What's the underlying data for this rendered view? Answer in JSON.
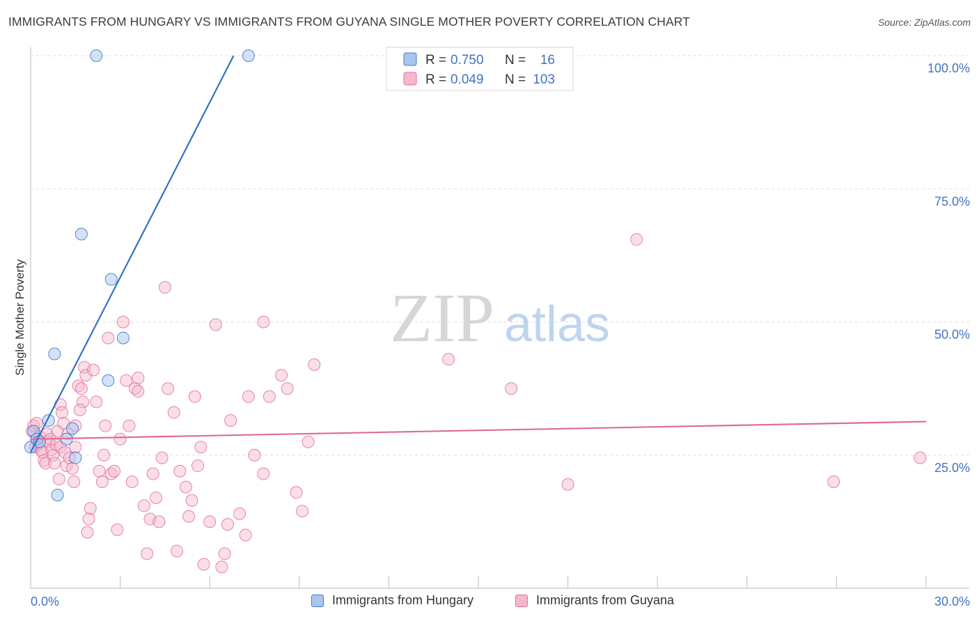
{
  "title": "IMMIGRANTS FROM HUNGARY VS IMMIGRANTS FROM GUYANA SINGLE MOTHER POVERTY CORRELATION CHART",
  "source": "Source: ZipAtlas.com",
  "watermark": {
    "zip": "ZIP",
    "atlas": "atlas"
  },
  "colors": {
    "blue": "#4477cc",
    "blue_fill": "#a9c6ee",
    "blue_line": "#3370c8",
    "pink": "#e0709a",
    "pink_fill": "#f4b8cc",
    "pink_line": "#e06a95",
    "axis_label": "#4472c4",
    "grid": "#dddddd"
  },
  "legend_box": {
    "rows": [
      {
        "r_label": "R =",
        "r_value": "0.750",
        "n_label": "N =",
        "n_value": "16"
      },
      {
        "r_label": "R =",
        "r_value": "0.049",
        "n_label": "N =",
        "n_value": "103"
      }
    ]
  },
  "legend_bottom": {
    "hungary": "Immigrants from Hungary",
    "guyana": "Immigrants from Guyana"
  },
  "chart_data": {
    "type": "scatter",
    "title": "IMMIGRANTS FROM HUNGARY VS IMMIGRANTS FROM GUYANA SINGLE MOTHER POVERTY CORRELATION CHART",
    "xlabel": "",
    "ylabel": "Single Mother Poverty",
    "xlim": [
      0,
      30
    ],
    "ylim": [
      0,
      100
    ],
    "x_tick_labels": [
      "0.0%",
      "30.0%"
    ],
    "y_tick_labels": [
      "25.0%",
      "50.0%",
      "75.0%",
      "100.0%"
    ],
    "y_ticks": [
      25,
      50,
      75,
      100
    ],
    "grid": true,
    "series": [
      {
        "name": "Immigrants from Hungary",
        "color": "#4477cc",
        "R": 0.75,
        "N": 16,
        "points": [
          [
            0.0,
            26.5
          ],
          [
            0.1,
            29.5
          ],
          [
            0.2,
            28.0
          ],
          [
            0.3,
            27.5
          ],
          [
            0.6,
            31.5
          ],
          [
            0.8,
            44.0
          ],
          [
            0.9,
            17.5
          ],
          [
            1.2,
            28.0
          ],
          [
            1.4,
            30.0
          ],
          [
            1.5,
            24.5
          ],
          [
            1.7,
            66.5
          ],
          [
            2.2,
            100.0
          ],
          [
            2.6,
            39.0
          ],
          [
            2.7,
            58.0
          ],
          [
            3.1,
            47.0
          ],
          [
            7.3,
            100.0
          ]
        ],
        "trend": {
          "x": [
            0.0,
            6.8
          ],
          "y": [
            25.5,
            100.0
          ]
        }
      },
      {
        "name": "Immigrants from Guyana",
        "color": "#e0709a",
        "R": 0.049,
        "N": 103,
        "points": [
          [
            0.05,
            29.5
          ],
          [
            0.1,
            30.5
          ],
          [
            0.15,
            26.5
          ],
          [
            0.2,
            28.0
          ],
          [
            0.25,
            27.0
          ],
          [
            0.3,
            28.5
          ],
          [
            0.35,
            26.0
          ],
          [
            0.4,
            25.5
          ],
          [
            0.45,
            24.0
          ],
          [
            0.5,
            23.5
          ],
          [
            0.55,
            29.0
          ],
          [
            0.6,
            27.5
          ],
          [
            0.65,
            28.0
          ],
          [
            0.7,
            26.0
          ],
          [
            0.75,
            25.0
          ],
          [
            0.8,
            23.5
          ],
          [
            0.85,
            27.0
          ],
          [
            0.9,
            29.5
          ],
          [
            1.0,
            26.5
          ],
          [
            1.0,
            34.5
          ],
          [
            1.05,
            33.0
          ],
          [
            1.1,
            31.0
          ],
          [
            1.15,
            25.5
          ],
          [
            1.2,
            23.0
          ],
          [
            1.3,
            24.5
          ],
          [
            1.4,
            22.5
          ],
          [
            1.45,
            20.0
          ],
          [
            1.5,
            26.5
          ],
          [
            1.5,
            30.5
          ],
          [
            1.6,
            38.0
          ],
          [
            1.7,
            37.5
          ],
          [
            1.75,
            35.0
          ],
          [
            1.8,
            41.5
          ],
          [
            1.85,
            40.0
          ],
          [
            1.9,
            10.5
          ],
          [
            1.95,
            13.0
          ],
          [
            2.1,
            41.0
          ],
          [
            2.2,
            35.0
          ],
          [
            2.3,
            22.0
          ],
          [
            2.4,
            20.0
          ],
          [
            2.5,
            30.5
          ],
          [
            2.6,
            47.0
          ],
          [
            2.7,
            21.5
          ],
          [
            2.8,
            22.0
          ],
          [
            2.9,
            11.0
          ],
          [
            3.0,
            28.0
          ],
          [
            3.1,
            50.0
          ],
          [
            3.2,
            39.0
          ],
          [
            3.3,
            30.5
          ],
          [
            3.4,
            20.0
          ],
          [
            3.5,
            37.5
          ],
          [
            3.6,
            39.5
          ],
          [
            3.8,
            15.5
          ],
          [
            3.9,
            6.5
          ],
          [
            4.0,
            13.0
          ],
          [
            4.1,
            21.5
          ],
          [
            4.3,
            12.5
          ],
          [
            4.4,
            24.5
          ],
          [
            4.5,
            56.5
          ],
          [
            4.6,
            37.5
          ],
          [
            4.8,
            33.0
          ],
          [
            5.0,
            22.0
          ],
          [
            5.2,
            19.0
          ],
          [
            5.3,
            13.5
          ],
          [
            5.5,
            36.0
          ],
          [
            5.6,
            23.0
          ],
          [
            5.7,
            26.5
          ],
          [
            5.8,
            4.5
          ],
          [
            6.0,
            12.5
          ],
          [
            6.2,
            49.5
          ],
          [
            6.4,
            4.0
          ],
          [
            6.5,
            6.5
          ],
          [
            6.7,
            31.5
          ],
          [
            7.0,
            14.0
          ],
          [
            7.2,
            10.0
          ],
          [
            7.3,
            36.0
          ],
          [
            7.5,
            25.0
          ],
          [
            7.8,
            21.5
          ],
          [
            7.8,
            50.0
          ],
          [
            8.0,
            36.0
          ],
          [
            8.4,
            40.0
          ],
          [
            8.6,
            37.5
          ],
          [
            8.9,
            18.0
          ],
          [
            9.1,
            14.5
          ],
          [
            9.3,
            27.5
          ],
          [
            9.5,
            42.0
          ],
          [
            14.0,
            43.0
          ],
          [
            16.1,
            37.5
          ],
          [
            18.0,
            19.5
          ],
          [
            20.3,
            65.5
          ],
          [
            26.9,
            20.0
          ],
          [
            29.8,
            24.5
          ],
          [
            2.0,
            15.0
          ],
          [
            4.9,
            7.0
          ],
          [
            3.6,
            37.0
          ],
          [
            1.25,
            29.0
          ],
          [
            0.95,
            20.5
          ],
          [
            6.6,
            12.0
          ],
          [
            5.4,
            16.5
          ],
          [
            2.45,
            25.0
          ],
          [
            1.65,
            33.5
          ],
          [
            0.2,
            31.0
          ],
          [
            4.2,
            17.0
          ]
        ],
        "trend": {
          "x": [
            0.0,
            30.0
          ],
          "y": [
            28.0,
            31.3
          ]
        }
      }
    ]
  }
}
